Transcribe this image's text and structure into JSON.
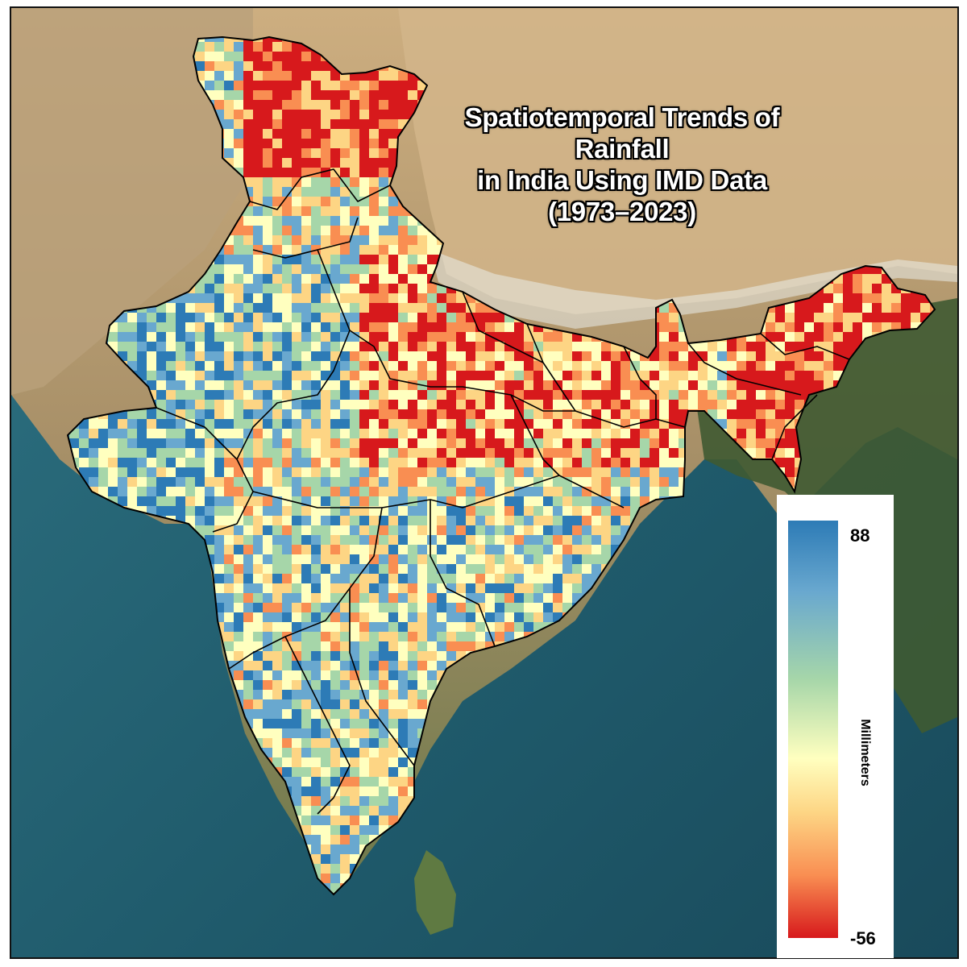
{
  "map": {
    "title_lines": [
      "Spatiotemporal Trends of Rainfall",
      "in India Using IMD Data",
      "(1973–2023)"
    ],
    "subject": "India",
    "variable": "Rainfall trend",
    "data_source": "IMD",
    "period": "1973–2023"
  },
  "legend": {
    "unit_label": "Millimeters",
    "max_label": "88",
    "min_label": "-56",
    "max_value": 88,
    "min_value": -56,
    "colormap": "RdYlBu",
    "colors": [
      "#2d7bb6",
      "#69a8cf",
      "#a6d6a9",
      "#ffffbf",
      "#fdd584",
      "#f98e52",
      "#d7191c"
    ]
  },
  "basemap": {
    "terrain_colors": [
      "#c8a878",
      "#9a8a5a",
      "#4e6a3a",
      "#2f4a28"
    ],
    "ocean_colors": [
      "#2a6e80",
      "#1d5566",
      "#174556"
    ],
    "snow_color": "#eef0f0",
    "border_color": "#000000"
  }
}
